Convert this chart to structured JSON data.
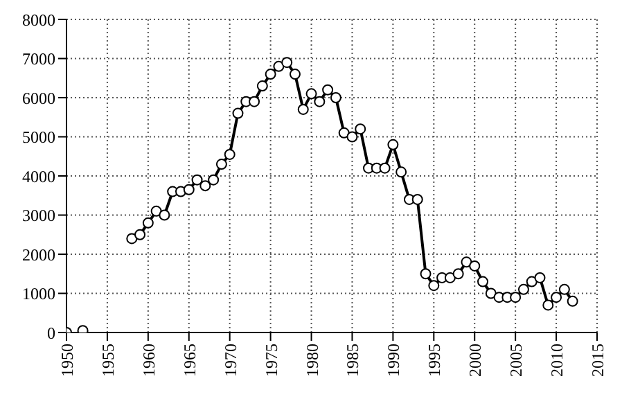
{
  "chart_data": {
    "type": "line",
    "x": [
      1950,
      1951,
      1952,
      1953,
      1954,
      1955,
      1956,
      1957,
      1958,
      1959,
      1960,
      1961,
      1962,
      1963,
      1964,
      1965,
      1966,
      1967,
      1968,
      1969,
      1970,
      1971,
      1972,
      1973,
      1974,
      1975,
      1976,
      1977,
      1978,
      1979,
      1980,
      1981,
      1982,
      1983,
      1984,
      1985,
      1986,
      1987,
      1988,
      1989,
      1990,
      1991,
      1992,
      1993,
      1994,
      1995,
      1996,
      1997,
      1998,
      1999,
      2000,
      2001,
      2002,
      2003,
      2004,
      2005,
      2006,
      2007,
      2008,
      2009,
      2010,
      2011,
      2012
    ],
    "series": [
      {
        "color": "#000000",
        "values": [
          0,
          null,
          50,
          null,
          null,
          null,
          null,
          null,
          2400,
          2500,
          2800,
          3100,
          3000,
          3600,
          3600,
          3650,
          3900,
          3750,
          3900,
          4300,
          4550,
          5600,
          5900,
          5900,
          6300,
          6600,
          6800,
          6900,
          6600,
          5700,
          6100,
          5900,
          6200,
          6000,
          5100,
          5000,
          5200,
          4200,
          4200,
          4200,
          4800,
          4100,
          3400,
          3400,
          1500,
          1200,
          1400,
          1400,
          1500,
          1800,
          1700,
          1300,
          1000,
          900,
          900,
          900,
          1100,
          1300,
          1400,
          700,
          900,
          1100,
          800
        ]
      }
    ],
    "xlim": [
      1950,
      2015
    ],
    "xticks": [
      1950,
      1955,
      1960,
      1965,
      1970,
      1975,
      1980,
      1985,
      1990,
      1995,
      2000,
      2005,
      2010,
      2015
    ],
    "ylim": [
      0,
      8000
    ],
    "yticks": [
      0,
      1000,
      2000,
      3000,
      4000,
      5000,
      6000,
      7000,
      8000
    ],
    "grid": true,
    "marker": "circle",
    "line_style": "solid"
  }
}
